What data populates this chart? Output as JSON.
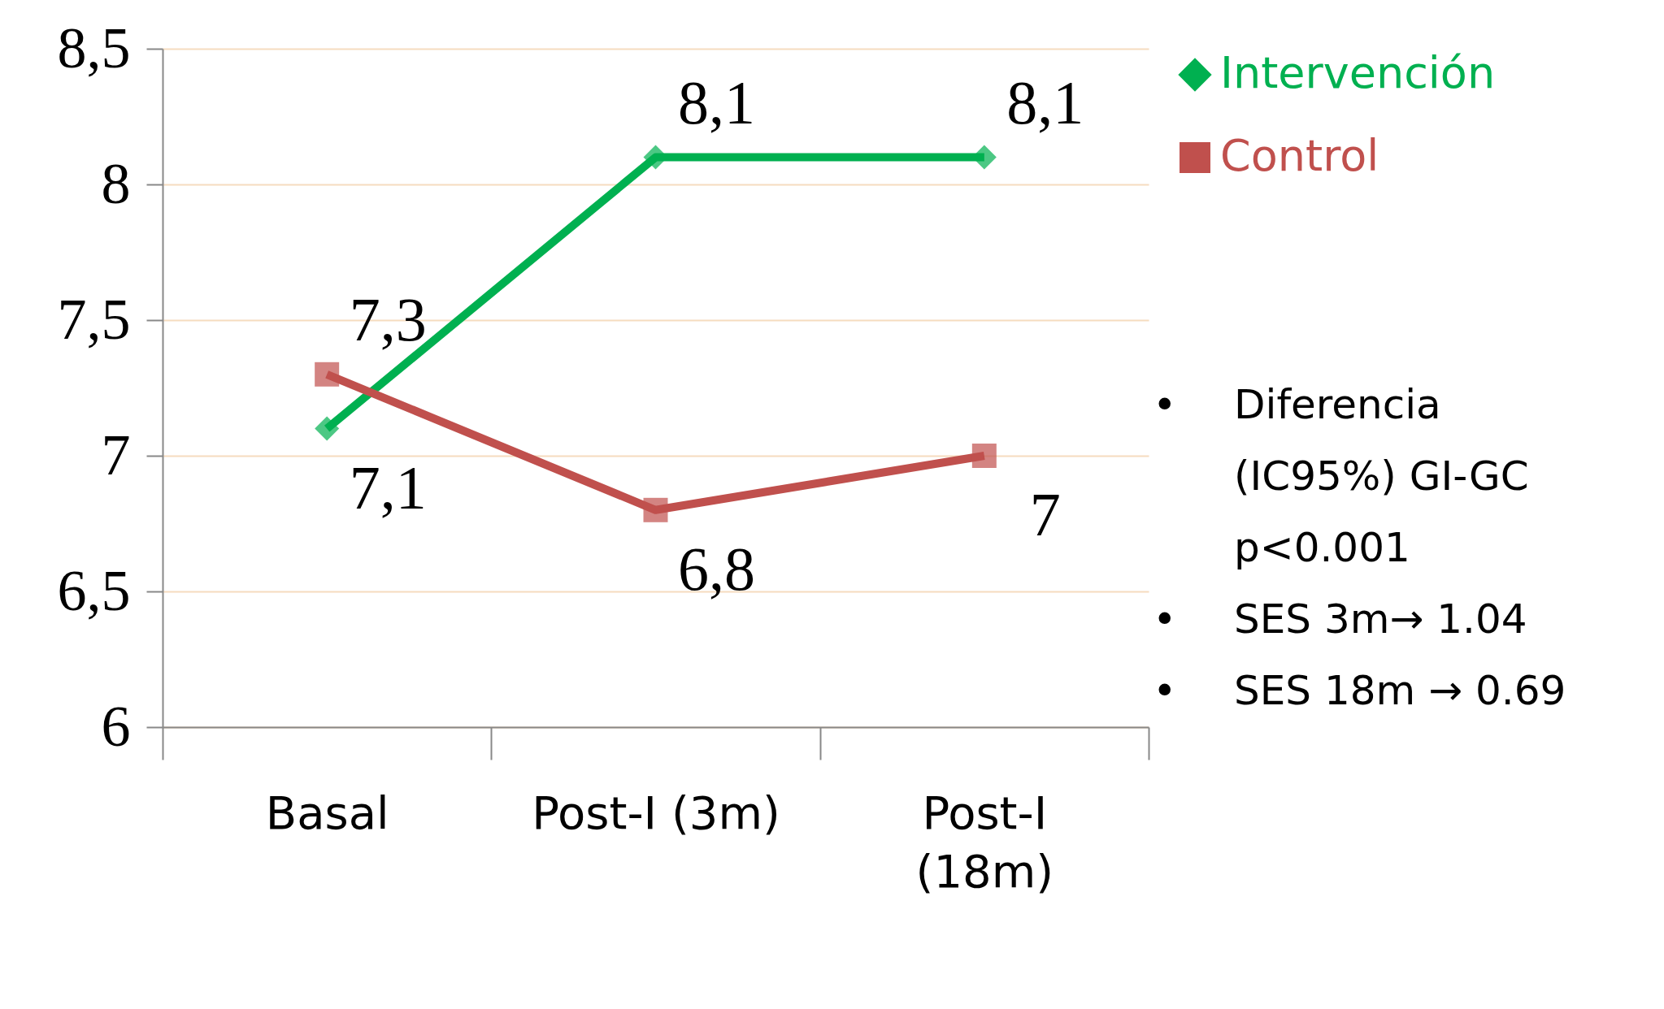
{
  "chart_data": {
    "type": "line",
    "categories": [
      "Basal",
      "Post-I (3m)",
      "Post-I (18m)"
    ],
    "series": [
      {
        "name": "Intervención",
        "color": "#00b050",
        "marker": "diamond",
        "values": [
          7.1,
          8.1,
          8.1
        ],
        "value_labels": [
          "7,1",
          "8,1",
          "8,1"
        ]
      },
      {
        "name": "Control",
        "color": "#c0504d",
        "marker": "square",
        "values": [
          7.3,
          6.8,
          7.0
        ],
        "value_labels": [
          "7,3",
          "6,8",
          "7"
        ]
      }
    ],
    "ylim": [
      6,
      8.5
    ],
    "yticks": [
      6,
      {
        "value": 6.5,
        "label": "6,5"
      },
      7,
      {
        "value": 7.5,
        "label": "7,5"
      },
      8,
      {
        "value": 8.5,
        "label": "8,5"
      }
    ],
    "grid": "y",
    "legend": "top right",
    "annotations": [
      "• Diferencia (IC95%) GI-GC p<0.001",
      "• SES 3m→ 1.04",
      "• SES 18m → 0.69"
    ]
  }
}
